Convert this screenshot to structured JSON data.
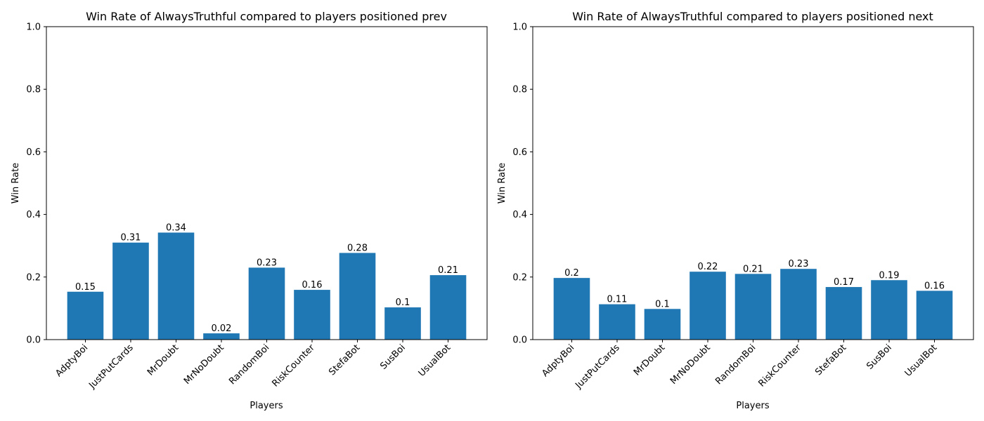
{
  "colors": {
    "bar": "#1f77b4",
    "axis": "#000000",
    "background": "#ffffff"
  },
  "chart_data": [
    {
      "type": "bar",
      "title": "Win Rate of AlwaysTruthful compared to players positioned prev",
      "xlabel": "Players",
      "ylabel": "Win Rate",
      "ylim": [
        0,
        1.0
      ],
      "yticks": [
        "0.0",
        "0.2",
        "0.4",
        "0.6",
        "0.8",
        "1.0"
      ],
      "grid": false,
      "categories": [
        "AdptyBoi",
        "JustPutCards",
        "MrDoubt",
        "MrNoDoubt",
        "RandomBoi",
        "RiskCounter",
        "StefaBot",
        "SusBoi",
        "UsualBot"
      ],
      "values": [
        0.153,
        0.31,
        0.342,
        0.02,
        0.23,
        0.159,
        0.277,
        0.103,
        0.206
      ],
      "data_labels": [
        "0.15",
        "0.31",
        "0.34",
        "0.02",
        "0.23",
        "0.16",
        "0.28",
        "0.1",
        "0.21"
      ]
    },
    {
      "type": "bar",
      "title": "Win Rate of AlwaysTruthful compared to players positioned next",
      "xlabel": "Players",
      "ylabel": "Win Rate",
      "ylim": [
        0,
        1.0
      ],
      "yticks": [
        "0.0",
        "0.2",
        "0.4",
        "0.6",
        "0.8",
        "1.0"
      ],
      "grid": false,
      "categories": [
        "AdptyBoi",
        "JustPutCards",
        "MrDoubt",
        "MrNoDoubt",
        "RandomBoi",
        "RiskCounter",
        "StefaBot",
        "SusBoi",
        "UsualBot"
      ],
      "values": [
        0.197,
        0.113,
        0.098,
        0.217,
        0.21,
        0.226,
        0.168,
        0.19,
        0.156
      ],
      "data_labels": [
        "0.2",
        "0.11",
        "0.1",
        "0.22",
        "0.21",
        "0.23",
        "0.17",
        "0.19",
        "0.16"
      ]
    }
  ]
}
